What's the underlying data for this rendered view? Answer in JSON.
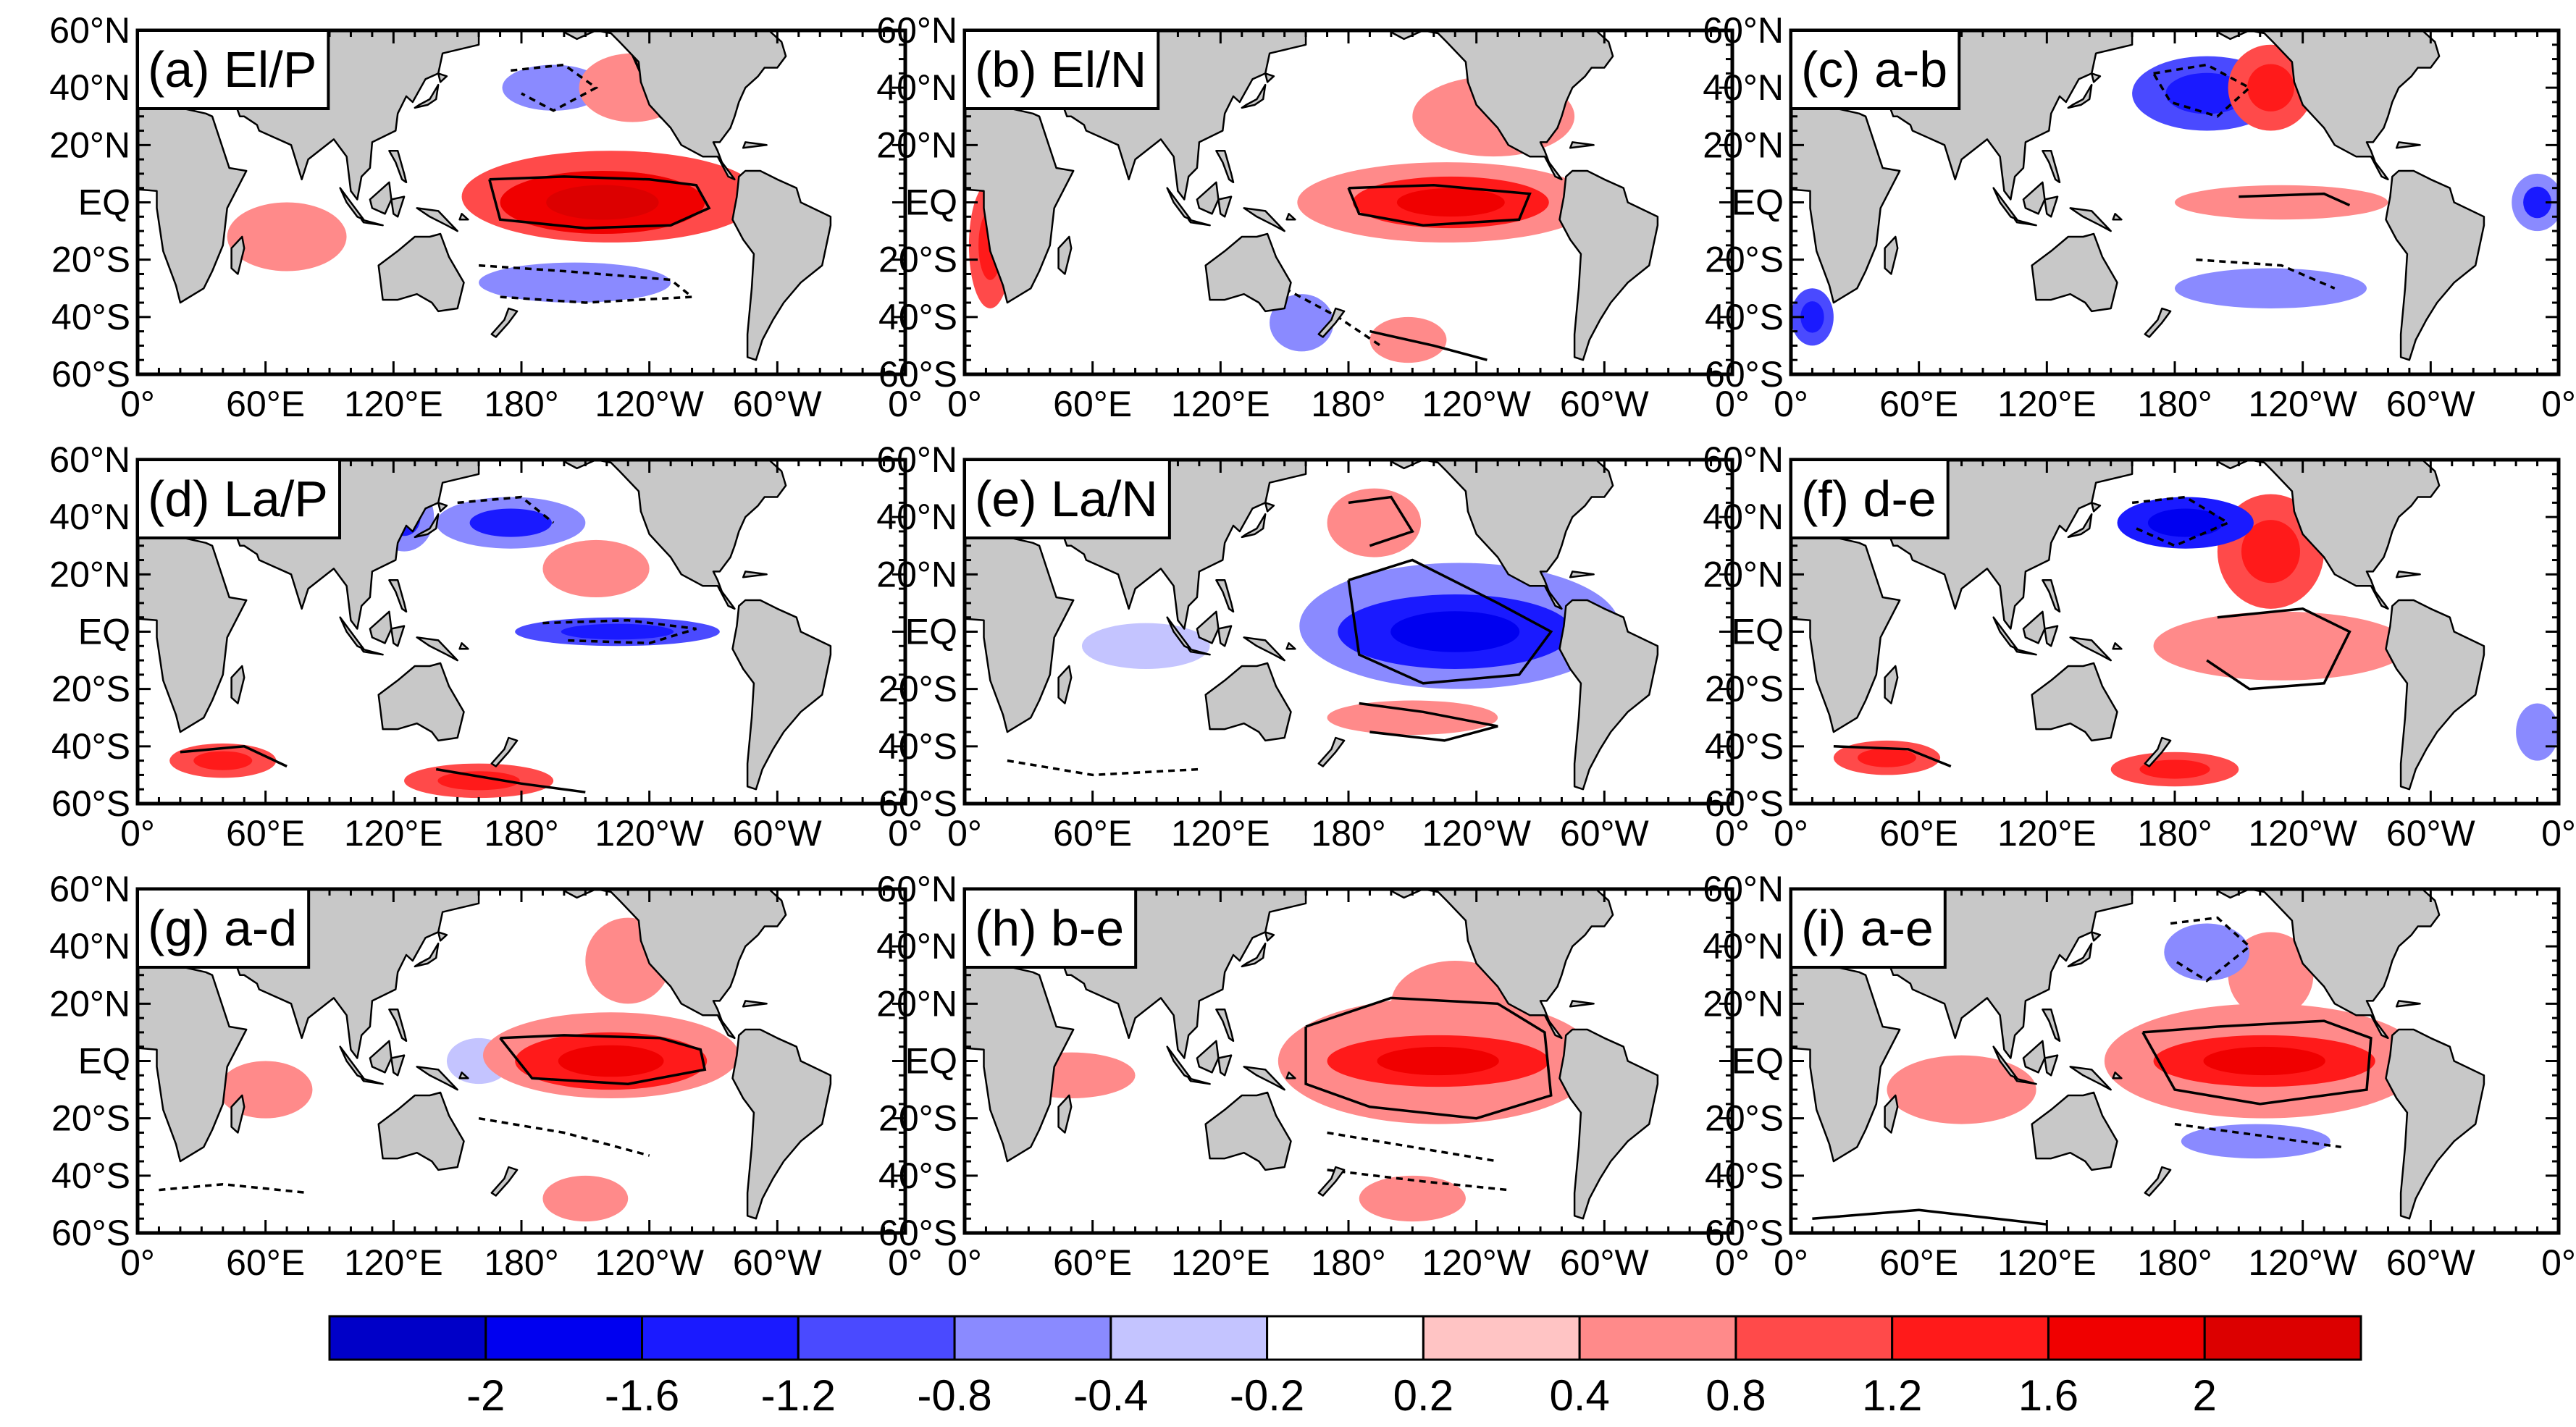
{
  "chart_data": {
    "type": "heatmap",
    "title": "",
    "grid": false,
    "panel_grid": "3x3",
    "lat_ticks": [
      "60°N",
      "40°N",
      "20°N",
      "EQ",
      "20°S",
      "40°S",
      "60°S"
    ],
    "lat_values": [
      60,
      40,
      20,
      0,
      -20,
      -40,
      -60
    ],
    "lon_ticks": [
      "0°",
      "60°E",
      "120°E",
      "180°",
      "120°W",
      "60°W",
      "0°"
    ],
    "lon_values": [
      0,
      60,
      120,
      180,
      240,
      300,
      360
    ],
    "ylim": [
      -60,
      60
    ],
    "xlim": [
      0,
      360
    ],
    "panels": [
      {
        "id": "a",
        "label": "(a)  El/P",
        "features": [
          {
            "lon": 218,
            "lat": 0,
            "rx": 48,
            "ry": 11,
            "value": 1.8
          },
          {
            "lon": 222,
            "lat": 2,
            "rx": 70,
            "ry": 16,
            "value": 0.8
          },
          {
            "lon": 195,
            "lat": 40,
            "rx": 24,
            "ry": 8,
            "value": -0.6
          },
          {
            "lon": 205,
            "lat": -28,
            "rx": 45,
            "ry": 7,
            "value": -0.5
          },
          {
            "lon": 70,
            "lat": -12,
            "rx": 28,
            "ry": 12,
            "value": 0.5
          },
          {
            "lon": 232,
            "lat": 40,
            "rx": 25,
            "ry": 12,
            "value": 0.6
          }
        ]
      },
      {
        "id": "b",
        "label": "(b)  El/N",
        "features": [
          {
            "lon": 228,
            "lat": 0,
            "rx": 46,
            "ry": 9,
            "value": 1.4
          },
          {
            "lon": 226,
            "lat": 0,
            "rx": 70,
            "ry": 14,
            "value": 0.6
          },
          {
            "lon": 12,
            "lat": -15,
            "rx": 10,
            "ry": 22,
            "value": 0.8
          },
          {
            "lon": 208,
            "lat": -48,
            "rx": 18,
            "ry": 8,
            "value": 0.5
          },
          {
            "lon": 158,
            "lat": -42,
            "rx": 15,
            "ry": 10,
            "value": -0.6
          },
          {
            "lon": 248,
            "lat": 30,
            "rx": 38,
            "ry": 14,
            "value": 0.4
          }
        ]
      },
      {
        "id": "c",
        "label": "(c)  a-b",
        "features": [
          {
            "lon": 195,
            "lat": 38,
            "rx": 35,
            "ry": 13,
            "value": -1.0
          },
          {
            "lon": 225,
            "lat": 40,
            "rx": 20,
            "ry": 15,
            "value": 1.0
          },
          {
            "lon": 230,
            "lat": 0,
            "rx": 50,
            "ry": 6,
            "value": 0.6
          },
          {
            "lon": 225,
            "lat": -30,
            "rx": 45,
            "ry": 7,
            "value": -0.5
          },
          {
            "lon": 10,
            "lat": -40,
            "rx": 10,
            "ry": 10,
            "value": -1.0
          },
          {
            "lon": 350,
            "lat": 0,
            "rx": 12,
            "ry": 10,
            "value": -0.8
          }
        ]
      },
      {
        "id": "d",
        "label": "(d)  La/P",
        "features": [
          {
            "lon": 225,
            "lat": 0,
            "rx": 48,
            "ry": 5,
            "value": -1.1
          },
          {
            "lon": 175,
            "lat": 38,
            "rx": 35,
            "ry": 9,
            "value": -0.8
          },
          {
            "lon": 215,
            "lat": 22,
            "rx": 25,
            "ry": 10,
            "value": 0.4
          },
          {
            "lon": 160,
            "lat": -52,
            "rx": 35,
            "ry": 6,
            "value": 0.8
          },
          {
            "lon": 40,
            "lat": -45,
            "rx": 25,
            "ry": 6,
            "value": 0.8
          },
          {
            "lon": 125,
            "lat": 40,
            "rx": 14,
            "ry": 12,
            "value": -0.8
          }
        ]
      },
      {
        "id": "e",
        "label": "(e)  La/N",
        "features": [
          {
            "lon": 230,
            "lat": 0,
            "rx": 55,
            "ry": 13,
            "value": -1.4
          },
          {
            "lon": 232,
            "lat": 2,
            "rx": 75,
            "ry": 22,
            "value": -0.6
          },
          {
            "lon": 192,
            "lat": 38,
            "rx": 22,
            "ry": 12,
            "value": 0.7
          },
          {
            "lon": 210,
            "lat": -30,
            "rx": 40,
            "ry": 6,
            "value": 0.6
          },
          {
            "lon": 85,
            "lat": -5,
            "rx": 30,
            "ry": 8,
            "value": -0.4
          }
        ]
      },
      {
        "id": "f",
        "label": "(f)  d-e",
        "features": [
          {
            "lon": 185,
            "lat": 38,
            "rx": 32,
            "ry": 9,
            "value": -1.4
          },
          {
            "lon": 225,
            "lat": 28,
            "rx": 25,
            "ry": 20,
            "value": 1.0
          },
          {
            "lon": 230,
            "lat": -5,
            "rx": 60,
            "ry": 12,
            "value": 0.6
          },
          {
            "lon": 45,
            "lat": -44,
            "rx": 25,
            "ry": 6,
            "value": 1.0
          },
          {
            "lon": 180,
            "lat": -48,
            "rx": 30,
            "ry": 6,
            "value": 0.8
          },
          {
            "lon": 350,
            "lat": -35,
            "rx": 10,
            "ry": 10,
            "value": -0.7
          }
        ]
      },
      {
        "id": "g",
        "label": "(g)  a-d",
        "features": [
          {
            "lon": 222,
            "lat": 0,
            "rx": 45,
            "ry": 10,
            "value": 1.4
          },
          {
            "lon": 222,
            "lat": 2,
            "rx": 60,
            "ry": 15,
            "value": 0.6
          },
          {
            "lon": 230,
            "lat": 35,
            "rx": 20,
            "ry": 15,
            "value": 0.7
          },
          {
            "lon": 210,
            "lat": -48,
            "rx": 20,
            "ry": 8,
            "value": 0.5
          },
          {
            "lon": 160,
            "lat": 0,
            "rx": 15,
            "ry": 8,
            "value": -0.4
          },
          {
            "lon": 60,
            "lat": -10,
            "rx": 22,
            "ry": 10,
            "value": 0.4
          }
        ]
      },
      {
        "id": "h",
        "label": "(h)  b-e",
        "features": [
          {
            "lon": 222,
            "lat": 0,
            "rx": 52,
            "ry": 9,
            "value": 1.3
          },
          {
            "lon": 222,
            "lat": 0,
            "rx": 75,
            "ry": 22,
            "value": 0.5
          },
          {
            "lon": 230,
            "lat": 20,
            "rx": 30,
            "ry": 15,
            "value": 0.5
          },
          {
            "lon": 210,
            "lat": -48,
            "rx": 25,
            "ry": 8,
            "value": 0.4
          },
          {
            "lon": 50,
            "lat": -5,
            "rx": 30,
            "ry": 8,
            "value": 0.4
          }
        ]
      },
      {
        "id": "i",
        "label": "(i)  a-e",
        "features": [
          {
            "lon": 222,
            "lat": 0,
            "rx": 52,
            "ry": 9,
            "value": 1.5
          },
          {
            "lon": 222,
            "lat": 0,
            "rx": 75,
            "ry": 20,
            "value": 0.6
          },
          {
            "lon": 195,
            "lat": 38,
            "rx": 20,
            "ry": 10,
            "value": -0.7
          },
          {
            "lon": 218,
            "lat": -28,
            "rx": 35,
            "ry": 6,
            "value": -0.6
          },
          {
            "lon": 225,
            "lat": 30,
            "rx": 20,
            "ry": 15,
            "value": 0.6
          },
          {
            "lon": 80,
            "lat": -10,
            "rx": 35,
            "ry": 12,
            "value": 0.4
          }
        ]
      }
    ],
    "colorbar": {
      "levels": [
        -2.4,
        -2,
        -1.6,
        -1.2,
        -0.8,
        -0.4,
        -0.2,
        0.2,
        0.4,
        0.8,
        1.2,
        1.6,
        2,
        2.4
      ],
      "tick_labels": [
        "-2",
        "-1.6",
        "-1.2",
        "-0.8",
        "-0.4",
        "-0.2",
        "0.2",
        "0.4",
        "0.8",
        "1.2",
        "1.6",
        "2"
      ],
      "colors": [
        "#0000c8",
        "#0000f0",
        "#1a1aff",
        "#4a4aff",
        "#8a8aff",
        "#c4c4ff",
        "#ffffff",
        "#ffc4c4",
        "#ff8a8a",
        "#ff4a4a",
        "#ff1a1a",
        "#f00000",
        "#dc0000"
      ]
    },
    "land_color": "#c8c8c8"
  }
}
